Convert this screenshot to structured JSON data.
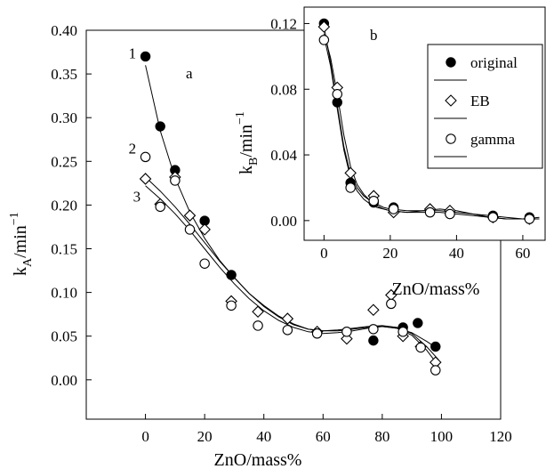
{
  "chart_data": [
    {
      "panel": "a",
      "type": "scatter",
      "xlabel": "ZnO/mass%",
      "ylabel_main": "k",
      "ylabel_sub": "A",
      "ylabel_unit": "/min",
      "ylabel_sup": "−1",
      "xlim": [
        -20,
        120
      ],
      "ylim": [
        -0.045,
        0.4
      ],
      "xticks": [
        0,
        20,
        40,
        60,
        80,
        100,
        120
      ],
      "xtick_labels": [
        "0",
        "20",
        "40",
        "60",
        "80",
        "100",
        "120"
      ],
      "yticks": [
        0.0,
        0.05,
        0.1,
        0.15,
        0.2,
        0.25,
        0.3,
        0.35,
        0.4
      ],
      "ytick_labels": [
        "0.00",
        "0.05",
        "0.10",
        "0.15",
        "0.20",
        "0.25",
        "0.30",
        "0.35",
        "0.40"
      ],
      "curve_labels": [
        {
          "text": "1",
          "x": -1.5,
          "y": 0.372
        },
        {
          "text": "2",
          "x": -1.5,
          "y": 0.263
        },
        {
          "text": "3",
          "x": 0,
          "y": 0.208
        }
      ],
      "series": [
        {
          "name": "original",
          "marker": "filled-circle",
          "x": [
            0,
            5,
            10,
            20,
            29,
            77,
            87,
            92,
            98
          ],
          "y": [
            0.37,
            0.29,
            0.24,
            0.182,
            0.12,
            0.045,
            0.06,
            0.065,
            0.038
          ]
        },
        {
          "name": "EB",
          "marker": "diamond",
          "x": [
            0,
            5,
            10,
            15,
            20,
            29,
            38,
            48,
            58,
            68,
            77,
            83,
            87,
            93,
            98
          ],
          "y": [
            0.23,
            0.201,
            0.232,
            0.188,
            0.172,
            0.09,
            0.078,
            0.07,
            0.055,
            0.047,
            0.08,
            0.097,
            0.05,
            0.038,
            0.02
          ]
        },
        {
          "name": "gamma",
          "marker": "open-circle",
          "x": [
            0,
            5,
            10,
            15,
            20,
            29,
            38,
            48,
            58,
            68,
            77,
            83,
            87,
            93,
            98
          ],
          "y": [
            0.255,
            0.198,
            0.228,
            0.172,
            0.133,
            0.085,
            0.062,
            0.057,
            0.053,
            0.055,
            0.058,
            0.087,
            0.055,
            0.037,
            0.011
          ]
        }
      ],
      "fit_curves": [
        {
          "name": "1",
          "x": [
            0,
            5,
            10,
            15,
            20,
            25,
            30,
            35,
            40,
            45,
            50,
            55,
            60,
            65,
            70,
            75,
            80,
            85,
            90,
            95,
            99
          ],
          "y": [
            0.36,
            0.285,
            0.231,
            0.192,
            0.162,
            0.137,
            0.117,
            0.099,
            0.085,
            0.073,
            0.064,
            0.058,
            0.056,
            0.056,
            0.058,
            0.06,
            0.061,
            0.059,
            0.054,
            0.044,
            0.035
          ]
        },
        {
          "name": "2",
          "x": [
            0,
            5,
            10,
            15,
            20,
            25,
            30,
            35,
            40,
            45,
            50,
            55,
            60,
            65,
            70,
            75,
            80,
            85,
            90,
            95,
            99
          ],
          "y": [
            0.232,
            0.216,
            0.198,
            0.178,
            0.157,
            0.136,
            0.117,
            0.099,
            0.084,
            0.072,
            0.063,
            0.058,
            0.056,
            0.057,
            0.059,
            0.061,
            0.062,
            0.06,
            0.053,
            0.038,
            0.023
          ]
        },
        {
          "name": "3",
          "x": [
            0,
            5,
            10,
            15,
            20,
            25,
            30,
            35,
            40,
            45,
            50,
            55,
            60,
            65,
            70,
            75,
            80,
            85,
            90,
            95,
            99
          ],
          "y": [
            0.222,
            0.207,
            0.19,
            0.171,
            0.15,
            0.129,
            0.11,
            0.093,
            0.079,
            0.068,
            0.06,
            0.055,
            0.053,
            0.054,
            0.056,
            0.059,
            0.061,
            0.059,
            0.051,
            0.034,
            0.016
          ]
        }
      ]
    },
    {
      "panel": "b",
      "type": "scatter",
      "xlabel": "ZnO/mass%",
      "ylabel_main": "k",
      "ylabel_sub": "B",
      "ylabel_unit": "/min",
      "ylabel_sup": "−1",
      "xlim": [
        -6,
        67
      ],
      "ylim": [
        -0.012,
        0.13
      ],
      "yticks": [
        0.0,
        0.04,
        0.08,
        0.12
      ],
      "ytick_labels": [
        "0.00",
        "0.04",
        "0.08",
        "0.12"
      ],
      "xticks": [
        0,
        20,
        40,
        60
      ],
      "xtick_labels": [
        "0",
        "20",
        "40",
        "60"
      ],
      "legend_position": "top-right",
      "series": [
        {
          "name": "original",
          "marker": "filled-circle",
          "x": [
            0,
            4,
            8,
            15,
            21,
            32,
            38,
            51,
            62
          ],
          "y": [
            0.12,
            0.072,
            0.023,
            0.011,
            0.008,
            0.006,
            0.004,
            0.003,
            0.002
          ]
        },
        {
          "name": "EB",
          "marker": "diamond",
          "x": [
            0,
            4,
            8,
            15,
            21,
            32,
            38,
            51,
            62
          ],
          "y": [
            0.118,
            0.081,
            0.029,
            0.015,
            0.005,
            0.007,
            0.006,
            0.002,
            0.001
          ]
        },
        {
          "name": "gamma",
          "marker": "open-circle",
          "x": [
            0,
            4,
            8,
            15,
            21,
            32,
            38,
            51,
            62
          ],
          "y": [
            0.11,
            0.077,
            0.02,
            0.012,
            0.007,
            0.005,
            0.004,
            0.002,
            0.001
          ]
        }
      ],
      "fit_curves": [
        {
          "name": "c1",
          "x": [
            0,
            2,
            4,
            6,
            8,
            10,
            12,
            14,
            16,
            18,
            20,
            25,
            30,
            35,
            40,
            45,
            50,
            55,
            60,
            65
          ],
          "y": [
            0.118,
            0.096,
            0.07,
            0.045,
            0.028,
            0.02,
            0.015,
            0.012,
            0.01,
            0.008,
            0.007,
            0.006,
            0.006,
            0.006,
            0.005,
            0.004,
            0.003,
            0.002,
            0.001,
            0.001
          ]
        },
        {
          "name": "c2",
          "x": [
            0,
            2,
            4,
            6,
            8,
            10,
            12,
            14,
            16,
            18,
            20,
            25,
            30,
            35,
            40,
            45,
            50,
            55,
            60,
            65
          ],
          "y": [
            0.114,
            0.099,
            0.077,
            0.052,
            0.033,
            0.022,
            0.016,
            0.012,
            0.009,
            0.007,
            0.006,
            0.005,
            0.006,
            0.007,
            0.006,
            0.004,
            0.002,
            0.001,
            0.001,
            0.002
          ]
        },
        {
          "name": "c3",
          "x": [
            0,
            2,
            4,
            6,
            8,
            10,
            12,
            14,
            16,
            18,
            20,
            25,
            30,
            35,
            40,
            45,
            50,
            55,
            60,
            65
          ],
          "y": [
            0.112,
            0.094,
            0.068,
            0.043,
            0.026,
            0.018,
            0.013,
            0.01,
            0.008,
            0.007,
            0.006,
            0.005,
            0.005,
            0.005,
            0.004,
            0.003,
            0.002,
            0.001,
            0.001,
            0.001
          ]
        }
      ]
    }
  ]
}
